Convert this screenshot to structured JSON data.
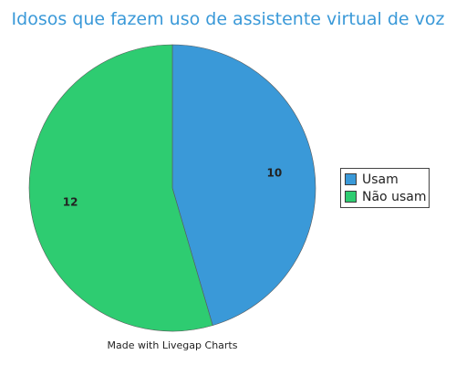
{
  "chart_data": {
    "type": "pie",
    "title": "Idosos que fazem uso de assistente virtual de voz",
    "categories": [
      "Usam",
      "Não usam"
    ],
    "values": [
      10,
      12
    ],
    "colors": [
      "#3a99d8",
      "#2ecc71"
    ],
    "legend_position": "right",
    "show_value_labels": true
  },
  "footer": {
    "credit": "Made with Livegap Charts"
  }
}
